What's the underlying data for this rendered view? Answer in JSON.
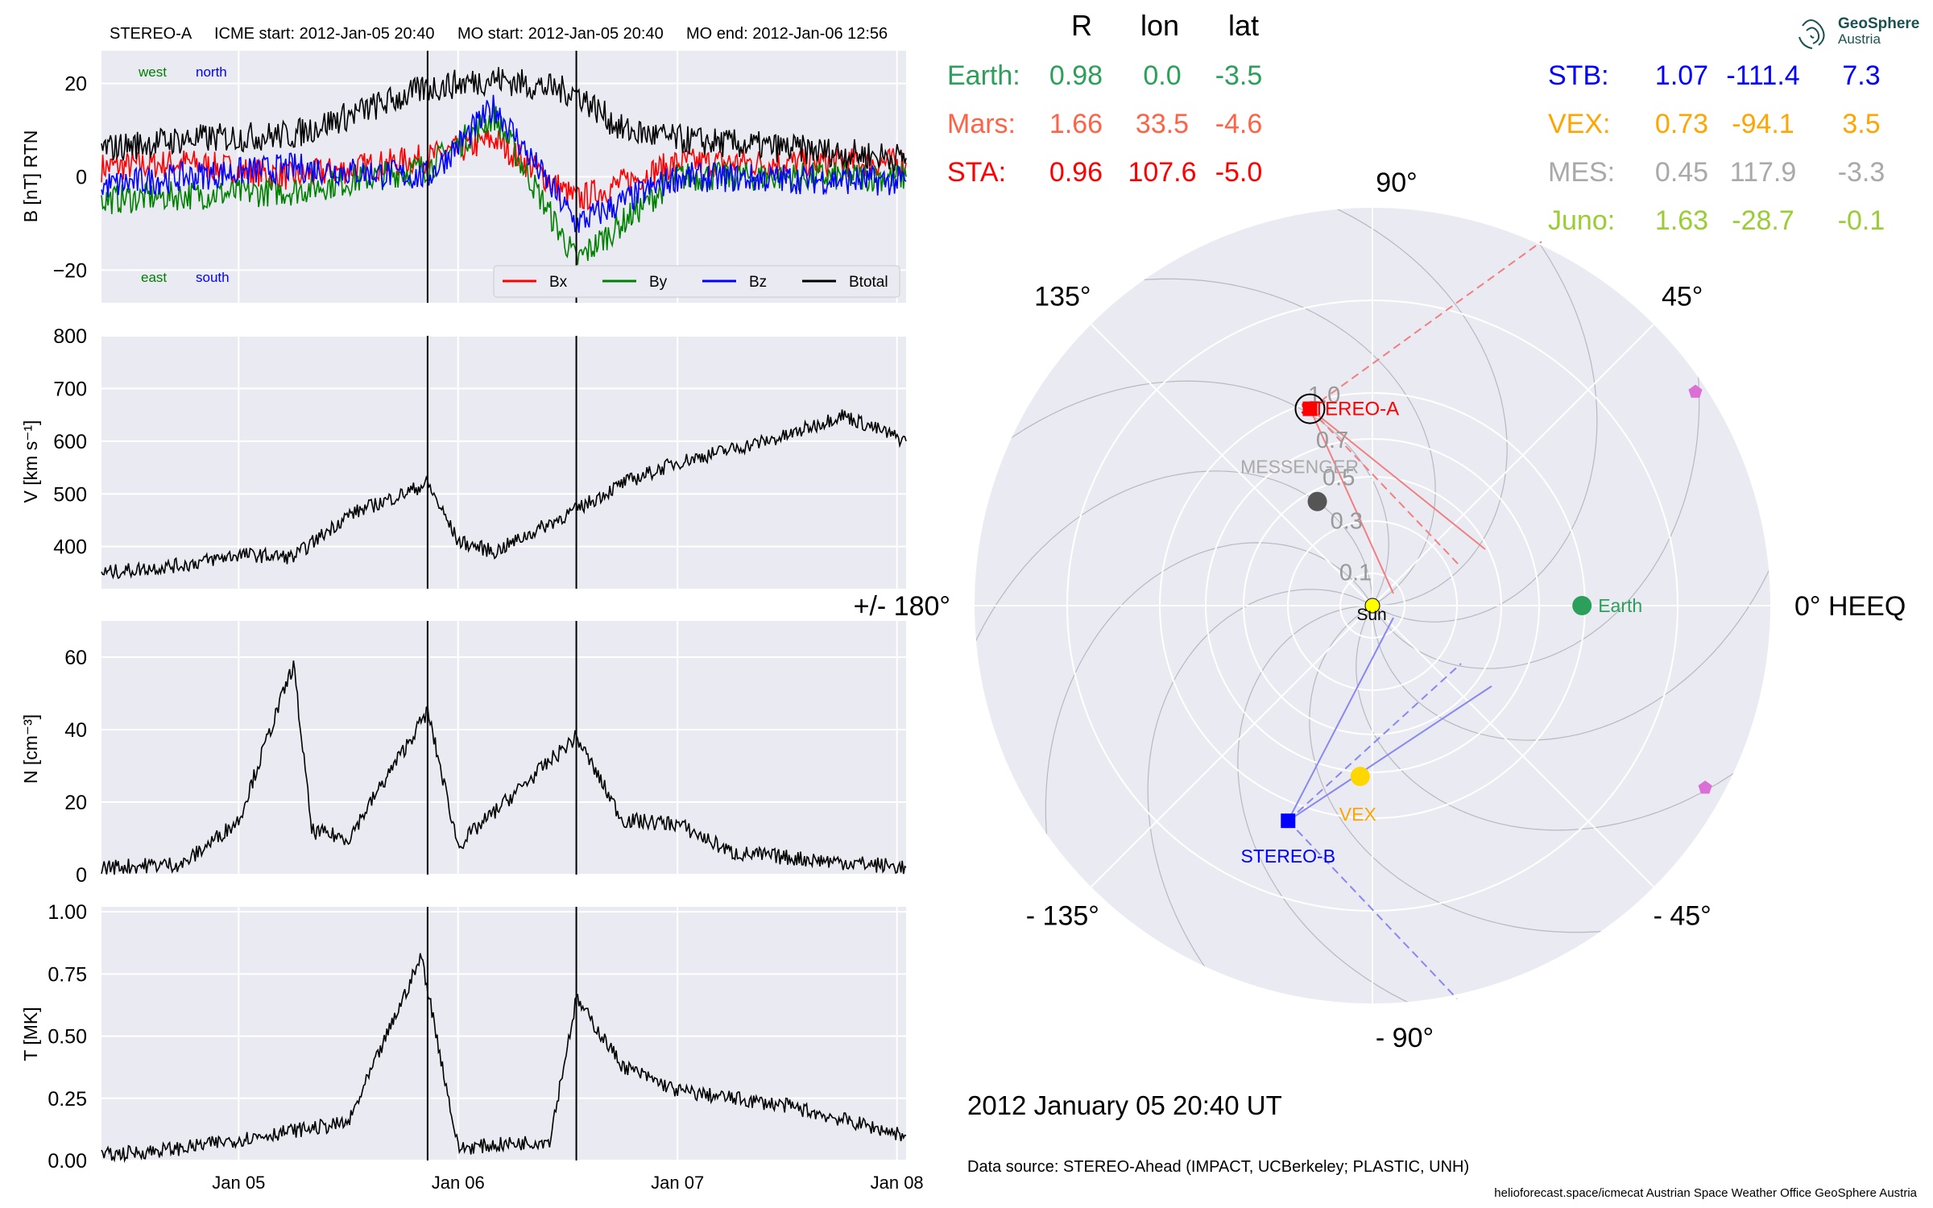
{
  "header": {
    "spacecraft": "STEREO-A",
    "icme_start": "ICME start: 2012-Jan-05 20:40",
    "mo_start": "MO start: 2012-Jan-05 20:40",
    "mo_end": "MO end: 2012-Jan-06 12:56"
  },
  "position_table": {
    "columns": [
      "R",
      "lon",
      "lat"
    ],
    "rows_left": [
      {
        "name": "Earth:",
        "R": "0.98",
        "lon": "0.0",
        "lat": "-3.5",
        "color": "#2ca05a"
      },
      {
        "name": "Mars:",
        "R": "1.66",
        "lon": "33.5",
        "lat": "-4.6",
        "color": "#ff6347"
      },
      {
        "name": "STA:",
        "R": "0.96",
        "lon": "107.6",
        "lat": "-5.0",
        "color": "#ff0000"
      }
    ],
    "rows_right": [
      {
        "name": "STB:",
        "R": "1.07",
        "lon": "-111.4",
        "lat": "7.3",
        "color": "#0000ff"
      },
      {
        "name": "VEX:",
        "R": "0.73",
        "lon": "-94.1",
        "lat": "3.5",
        "color": "#ffa500"
      },
      {
        "name": "MES:",
        "R": "0.45",
        "lon": "117.9",
        "lat": "-3.3",
        "color": "#a9a9a9"
      },
      {
        "name": "Juno:",
        "R": "1.63",
        "lon": "-28.7",
        "lat": "-0.1",
        "color": "#9acd32"
      }
    ]
  },
  "logo": {
    "name": "GeoSphere",
    "sub": "Austria"
  },
  "timestamp": "2012 January 05  20:40 UT",
  "data_source": "Data source: STEREO-Ahead (IMPACT, UCBerkeley; PLASTIC, UNH)",
  "footer_credits": "helioforecast.space/icmecat   Austrian Space Weather Office   GeoSphere Austria",
  "chart_data": [
    {
      "type": "line",
      "panel": "magnetic-field",
      "ylabel": "B [nT] RTN",
      "ylim": [
        -27,
        27
      ],
      "yticks": [
        -20,
        0,
        20
      ],
      "x_range_days": [
        "2012-01-04 09:00",
        "2012-01-08 01:00"
      ],
      "event_lines": [
        "2012-01-05 20:40",
        "2012-01-06 12:56"
      ],
      "corner_labels": {
        "west": "west",
        "north": "north",
        "east": "east",
        "south": "south"
      },
      "legend": [
        "Bx",
        "By",
        "Bz",
        "Btotal"
      ],
      "legend_position": "lower-right",
      "series": [
        {
          "name": "Bx",
          "color": "#ff0000",
          "points": [
            [
              "2012-01-04 09:00",
              2
            ],
            [
              "2012-01-04 18:00",
              3
            ],
            [
              "2012-01-05 06:00",
              0
            ],
            [
              "2012-01-05 20:40",
              4
            ],
            [
              "2012-01-06 04:00",
              8
            ],
            [
              "2012-01-06 12:56",
              -5
            ],
            [
              "2012-01-07 00:00",
              3
            ],
            [
              "2012-01-08 01:00",
              3
            ]
          ]
        },
        {
          "name": "By",
          "color": "#008000",
          "points": [
            [
              "2012-01-04 09:00",
              -5
            ],
            [
              "2012-01-04 18:00",
              -4
            ],
            [
              "2012-01-05 06:00",
              -3
            ],
            [
              "2012-01-05 20:40",
              2
            ],
            [
              "2012-01-06 04:00",
              13
            ],
            [
              "2012-01-06 12:56",
              -18
            ],
            [
              "2012-01-07 00:00",
              0
            ],
            [
              "2012-01-08 01:00",
              0
            ]
          ]
        },
        {
          "name": "Bz",
          "color": "#0000ff",
          "points": [
            [
              "2012-01-04 09:00",
              -2
            ],
            [
              "2012-01-04 18:00",
              0
            ],
            [
              "2012-01-05 06:00",
              2
            ],
            [
              "2012-01-05 20:40",
              0
            ],
            [
              "2012-01-06 04:00",
              15
            ],
            [
              "2012-01-06 12:56",
              -10
            ],
            [
              "2012-01-07 00:00",
              0
            ],
            [
              "2012-01-08 01:00",
              -1
            ]
          ]
        },
        {
          "name": "Btotal",
          "color": "#000000",
          "points": [
            [
              "2012-01-04 09:00",
              6
            ],
            [
              "2012-01-04 18:00",
              8
            ],
            [
              "2012-01-05 06:00",
              9
            ],
            [
              "2012-01-05 20:40",
              19
            ],
            [
              "2012-01-06 04:00",
              21
            ],
            [
              "2012-01-06 12:56",
              18
            ],
            [
              "2012-01-06 18:00",
              10
            ],
            [
              "2012-01-07 00:00",
              8
            ],
            [
              "2012-01-08 01:00",
              4
            ]
          ]
        }
      ]
    },
    {
      "type": "line",
      "panel": "speed",
      "ylabel": "V [km s⁻¹]",
      "ylim": [
        320,
        800
      ],
      "yticks": [
        400,
        500,
        600,
        700,
        800
      ],
      "series": [
        {
          "name": "V",
          "color": "#000000",
          "points": [
            [
              "2012-01-04 09:00",
              350
            ],
            [
              "2012-01-04 18:00",
              365
            ],
            [
              "2012-01-05 00:00",
              385
            ],
            [
              "2012-01-05 06:00",
              380
            ],
            [
              "2012-01-05 12:00",
              460
            ],
            [
              "2012-01-05 18:00",
              500
            ],
            [
              "2012-01-05 20:40",
              520
            ],
            [
              "2012-01-06 00:00",
              410
            ],
            [
              "2012-01-06 04:00",
              390
            ],
            [
              "2012-01-06 12:56",
              470
            ],
            [
              "2012-01-06 18:00",
              520
            ],
            [
              "2012-01-07 00:00",
              560
            ],
            [
              "2012-01-07 12:00",
              610
            ],
            [
              "2012-01-07 18:00",
              650
            ],
            [
              "2012-01-08 01:00",
              600
            ]
          ]
        }
      ]
    },
    {
      "type": "line",
      "panel": "density",
      "ylabel": "N [cm⁻³]",
      "ylim": [
        0,
        70
      ],
      "yticks": [
        0,
        20,
        40,
        60
      ],
      "series": [
        {
          "name": "N",
          "color": "#000000",
          "points": [
            [
              "2012-01-04 09:00",
              2
            ],
            [
              "2012-01-04 18:00",
              3
            ],
            [
              "2012-01-05 00:00",
              15
            ],
            [
              "2012-01-05 06:00",
              58
            ],
            [
              "2012-01-05 08:00",
              12
            ],
            [
              "2012-01-05 12:00",
              10
            ],
            [
              "2012-01-05 20:40",
              45
            ],
            [
              "2012-01-06 00:00",
              8
            ],
            [
              "2012-01-06 06:00",
              22
            ],
            [
              "2012-01-06 12:56",
              38
            ],
            [
              "2012-01-06 18:00",
              15
            ],
            [
              "2012-01-07 00:00",
              14
            ],
            [
              "2012-01-07 06:00",
              6
            ],
            [
              "2012-01-08 01:00",
              2
            ]
          ]
        }
      ]
    },
    {
      "type": "line",
      "panel": "temperature",
      "ylabel": "T [MK]",
      "ylim": [
        0,
        1.02
      ],
      "yticks": [
        "0.00",
        "0.25",
        "0.50",
        "0.75",
        "1.00"
      ],
      "xticks": [
        "Jan 05",
        "Jan 06",
        "Jan 07",
        "Jan 08"
      ],
      "series": [
        {
          "name": "T",
          "color": "#000000",
          "points": [
            [
              "2012-01-04 09:00",
              0.02
            ],
            [
              "2012-01-04 18:00",
              0.05
            ],
            [
              "2012-01-05 06:00",
              0.12
            ],
            [
              "2012-01-05 12:00",
              0.15
            ],
            [
              "2012-01-05 20:00",
              0.82
            ],
            [
              "2012-01-06 00:00",
              0.05
            ],
            [
              "2012-01-06 10:00",
              0.08
            ],
            [
              "2012-01-06 12:56",
              0.65
            ],
            [
              "2012-01-06 18:00",
              0.38
            ],
            [
              "2012-01-07 00:00",
              0.28
            ],
            [
              "2012-01-07 12:00",
              0.22
            ],
            [
              "2012-01-08 01:00",
              0.1
            ]
          ]
        }
      ]
    },
    {
      "type": "scatter",
      "panel": "polar-positions",
      "coordinate_system": "HEEQ",
      "r_ticks": [
        "0.1",
        "0.3",
        "0.5",
        "0.7",
        "1.0"
      ],
      "angle_labels": [
        "0° HEEQ",
        "45°",
        "90°",
        "135°",
        "+/- 180°",
        "- 135°",
        "- 90°",
        "- 45°"
      ],
      "center_label": "Sun",
      "bodies": [
        {
          "name": "Earth",
          "label": "Earth",
          "r": 0.98,
          "lon": 0.0,
          "color": "#2ca05a",
          "marker": "circle"
        },
        {
          "name": "STEREO-A",
          "label": "STEREO-A",
          "r": 0.96,
          "lon": 107.6,
          "color": "#ff0000",
          "marker": "square"
        },
        {
          "name": "STEREO-B",
          "label": "STEREO-B",
          "r": 1.07,
          "lon": -111.4,
          "color": "#0000ff",
          "marker": "square"
        },
        {
          "name": "VEX",
          "label": "VEX",
          "r": 0.73,
          "lon": -94.1,
          "color": "#ffd700",
          "marker": "circle"
        },
        {
          "name": "MESSENGER",
          "label": "MESSENGER",
          "r": 0.45,
          "lon": 117.9,
          "color": "#555555",
          "marker": "circle"
        },
        {
          "name": "Mars",
          "label": "",
          "r": 1.66,
          "lon": 33.5,
          "color": "#da70d6",
          "marker": "pentagon"
        },
        {
          "name": "Juno",
          "label": "",
          "r": 1.63,
          "lon": -28.7,
          "color": "#da70d6",
          "marker": "pentagon"
        }
      ]
    }
  ]
}
